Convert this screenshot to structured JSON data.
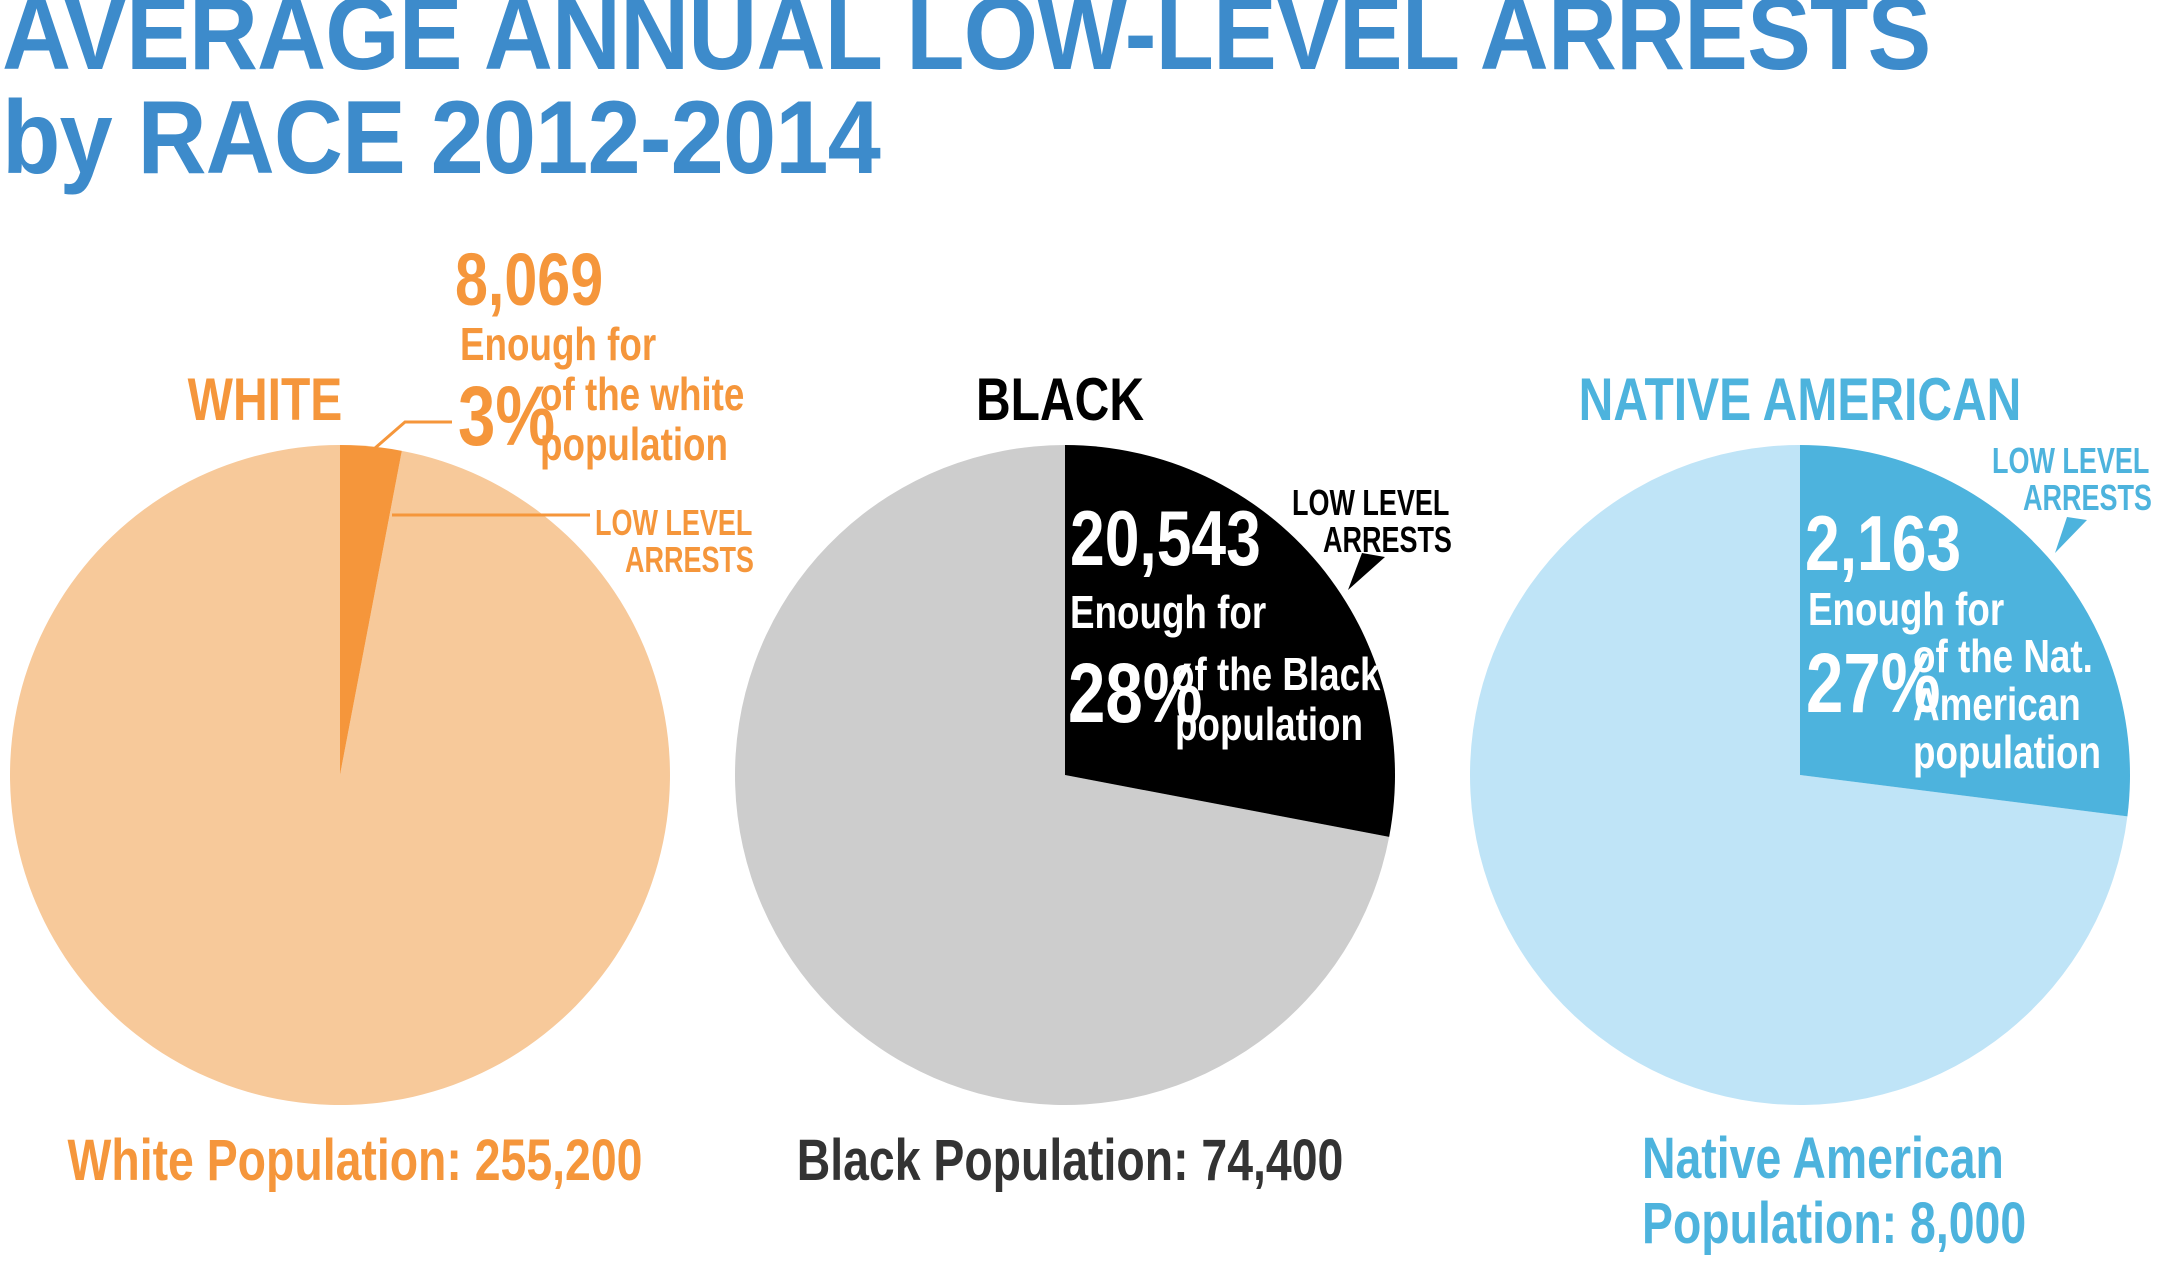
{
  "title_line1": "AVERAGE ANNUAL LOW-LEVEL ARRESTS",
  "title_line2": "by RACE  2012-2014",
  "colors": {
    "title": "#3d8bcb",
    "white_light": "#f7c99a",
    "white_dark": "#f5963b",
    "black_light": "#cdcdcd",
    "black_dark": "#000000",
    "native_light": "#bfe4f7",
    "native_dark": "#4db3dd"
  },
  "chart_data": [
    {
      "type": "pie",
      "title": "WHITE",
      "population_label": "White Population: 255,200",
      "population": 255200,
      "arrests": 8069,
      "arrests_label": "8,069",
      "percent": 3,
      "percent_label": "3%",
      "enough_for": "Enough for",
      "of_the": [
        "of the white",
        "population"
      ],
      "callout": [
        "LOW LEVEL",
        "ARRESTS"
      ],
      "slices": [
        {
          "name": "LOW LEVEL ARRESTS",
          "value": 3
        },
        {
          "name": "",
          "value": 97
        }
      ]
    },
    {
      "type": "pie",
      "title": "BLACK",
      "population_label": "Black Population: 74,400",
      "population": 74400,
      "arrests": 20543,
      "arrests_label": "20,543",
      "percent": 28,
      "percent_label": "28%",
      "enough_for": "Enough for",
      "of_the": [
        "of the Black",
        "population"
      ],
      "callout": [
        "LOW LEVEL",
        "ARRESTS"
      ],
      "slices": [
        {
          "name": "LOW LEVEL ARRESTS",
          "value": 28
        },
        {
          "name": "",
          "value": 72
        }
      ]
    },
    {
      "type": "pie",
      "title": "NATIVE AMERICAN",
      "population_label": [
        "Native American",
        "Population: 8,000"
      ],
      "population": 8000,
      "arrests": 2163,
      "arrests_label": "2,163",
      "percent": 27,
      "percent_label": "27%",
      "enough_for": "Enough for",
      "of_the": [
        "of the Nat.",
        "American",
        "population"
      ],
      "callout": [
        "LOW LEVEL",
        "ARRESTS"
      ],
      "slices": [
        {
          "name": "LOW LEVEL ARRESTS",
          "value": 27
        },
        {
          "name": "",
          "value": 73
        }
      ]
    }
  ]
}
